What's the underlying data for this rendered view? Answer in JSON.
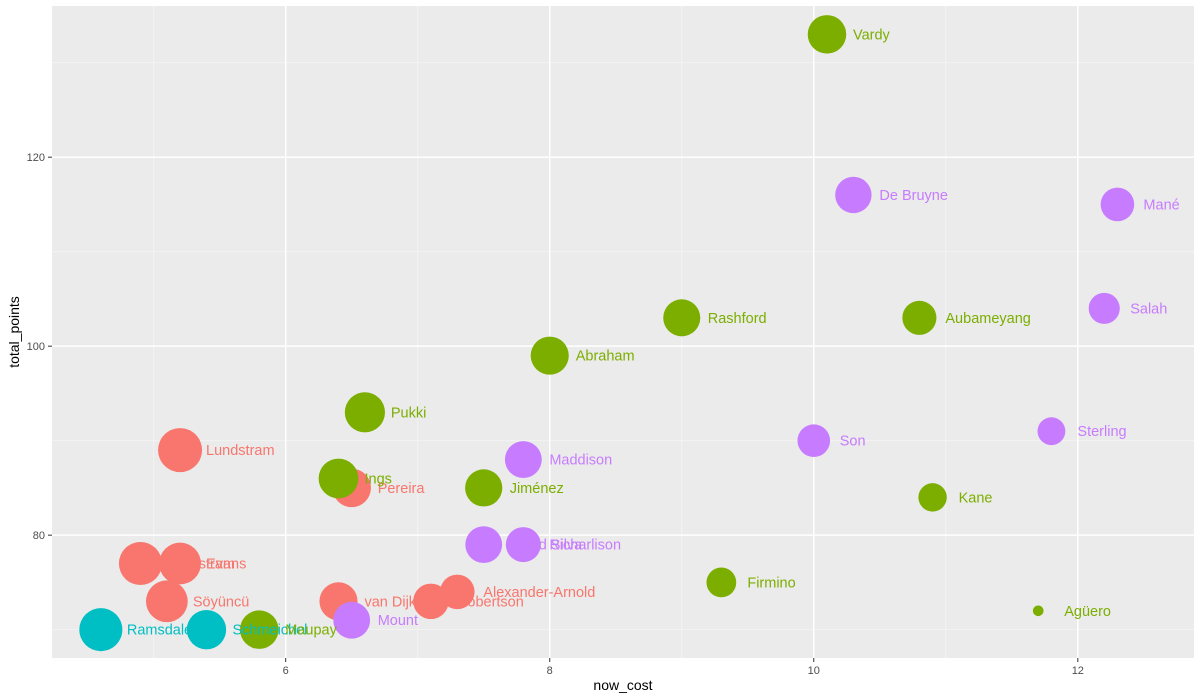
{
  "chart_data": {
    "type": "scatter",
    "xlabel": "now_cost",
    "ylabel": "total_points",
    "xlim": [
      4.23,
      12.88
    ],
    "ylim": [
      67,
      136
    ],
    "x_ticks": [
      6,
      8,
      10,
      12
    ],
    "y_ticks": [
      80,
      100,
      120
    ],
    "grid": true,
    "legend": "none",
    "colors": {
      "red": "#F8766D",
      "green": "#7CAE00",
      "teal": "#00BFC4",
      "purple": "#C77CFF"
    },
    "points": [
      {
        "name": "Vardy",
        "x": 10.1,
        "y": 133,
        "color": "green",
        "size": 0.92
      },
      {
        "name": "De Bruyne",
        "x": 10.3,
        "y": 116,
        "color": "purple",
        "size": 0.82
      },
      {
        "name": "Mané",
        "x": 12.3,
        "y": 115,
        "color": "purple",
        "size": 0.7
      },
      {
        "name": "Salah",
        "x": 12.2,
        "y": 104,
        "color": "purple",
        "size": 0.6
      },
      {
        "name": "Rashford",
        "x": 9.0,
        "y": 103,
        "color": "green",
        "size": 0.85
      },
      {
        "name": "Aubameyang",
        "x": 10.8,
        "y": 103,
        "color": "green",
        "size": 0.72
      },
      {
        "name": "Abraham",
        "x": 8.0,
        "y": 99,
        "color": "green",
        "size": 0.9
      },
      {
        "name": "Pukki",
        "x": 6.6,
        "y": 93,
        "color": "green",
        "size": 1.0
      },
      {
        "name": "Sterling",
        "x": 11.8,
        "y": 91,
        "color": "purple",
        "size": 0.48
      },
      {
        "name": "Son",
        "x": 10.0,
        "y": 90,
        "color": "purple",
        "size": 0.66
      },
      {
        "name": "Lundstram",
        "x": 5.2,
        "y": 89,
        "color": "red",
        "size": 1.2
      },
      {
        "name": "Maddison",
        "x": 7.8,
        "y": 88,
        "color": "purple",
        "size": 0.84
      },
      {
        "name": "Pereira",
        "x": 6.5,
        "y": 85,
        "color": "red",
        "size": 0.92
      },
      {
        "name": "Ings",
        "x": 6.4,
        "y": 86,
        "color": "green",
        "size": 0.98
      },
      {
        "name": "Jiménez",
        "x": 7.5,
        "y": 85,
        "color": "green",
        "size": 0.86
      },
      {
        "name": "Kane",
        "x": 10.9,
        "y": 84,
        "color": "green",
        "size": 0.5
      },
      {
        "name": "David Silva",
        "x": 7.5,
        "y": 79,
        "color": "purple",
        "size": 0.84
      },
      {
        "name": "Richarlison",
        "x": 7.8,
        "y": 79,
        "color": "purple",
        "size": 0.76
      },
      {
        "name": "Lundstram",
        "x": 4.9,
        "y": 77,
        "color": "red",
        "size": 1.15
      },
      {
        "name": "Evans",
        "x": 5.2,
        "y": 77,
        "color": "red",
        "size": 1.08
      },
      {
        "name": "Firmino",
        "x": 9.3,
        "y": 75,
        "color": "green",
        "size": 0.55
      },
      {
        "name": "Alexander-Arnold",
        "x": 7.3,
        "y": 74,
        "color": "red",
        "size": 0.74
      },
      {
        "name": "Söyüncü",
        "x": 5.1,
        "y": 73,
        "color": "red",
        "size": 1.08
      },
      {
        "name": "van Dijk",
        "x": 6.4,
        "y": 73,
        "color": "red",
        "size": 0.9
      },
      {
        "name": "Robertson",
        "x": 7.1,
        "y": 73,
        "color": "red",
        "size": 0.78
      },
      {
        "name": "Agüero",
        "x": 11.7,
        "y": 72,
        "color": "green",
        "size": 0.07
      },
      {
        "name": "Mount",
        "x": 6.5,
        "y": 71,
        "color": "purple",
        "size": 0.84
      },
      {
        "name": "Ramsdale",
        "x": 4.6,
        "y": 70,
        "color": "teal",
        "size": 1.15
      },
      {
        "name": "Schmeichel",
        "x": 5.4,
        "y": 70,
        "color": "teal",
        "size": 0.96
      },
      {
        "name": "Maupay",
        "x": 5.8,
        "y": 70,
        "color": "green",
        "size": 0.92
      }
    ]
  }
}
